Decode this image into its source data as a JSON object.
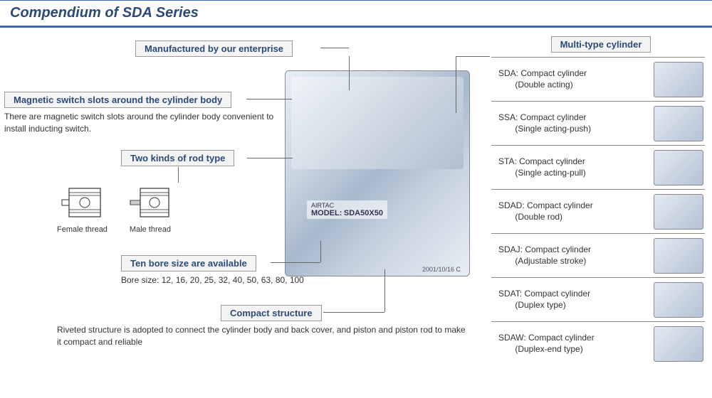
{
  "title": "Compendium of SDA Series",
  "callouts": {
    "manufactured": {
      "label": "Manufactured by our enterprise"
    },
    "magnetic": {
      "label": "Magnetic switch slots around the cylinder body",
      "desc": "There are magnetic switch slots around the cylinder body convenient to install inducting switch."
    },
    "rod": {
      "label": "Two kinds of rod type",
      "items": [
        "Female thread",
        "Male thread"
      ]
    },
    "bore": {
      "label": "Ten bore size are available",
      "desc": "Bore size: 12, 16, 20, 25, 32, 40, 50, 63, 80, 100"
    },
    "compact": {
      "label": "Compact structure",
      "desc": "Riveted structure is adopted to connect the cylinder body and back cover, and piston and piston rod to make it compact and reliable"
    }
  },
  "cylinder": {
    "brand": "AIRTAC",
    "model_label": "MODEL:",
    "model": "SDA50X50",
    "date": "2001/10/16 C"
  },
  "multi_type": {
    "header": "Multi-type cylinder",
    "items": [
      {
        "code": "SDA",
        "name": "Compact cylinder",
        "sub": "(Double acting)"
      },
      {
        "code": "SSA",
        "name": "Compact cylinder",
        "sub": "(Single acting-push)"
      },
      {
        "code": "STA",
        "name": "Compact cylinder",
        "sub": "(Single acting-pull)"
      },
      {
        "code": "SDAD",
        "name": "Compact cylinder",
        "sub": "(Double rod)"
      },
      {
        "code": "SDAJ",
        "name": "Compact cylinder",
        "sub": "(Adjustable stroke)"
      },
      {
        "code": "SDAT",
        "name": "Compact cylinder",
        "sub": "(Duplex type)"
      },
      {
        "code": "SDAW",
        "name": "Compact cylinder",
        "sub": "(Duplex-end type)"
      }
    ]
  },
  "colors": {
    "accent": "#2a4a7a",
    "border": "#888",
    "cylinder_light": "#e8eef4",
    "cylinder_dark": "#a8b8cc"
  }
}
